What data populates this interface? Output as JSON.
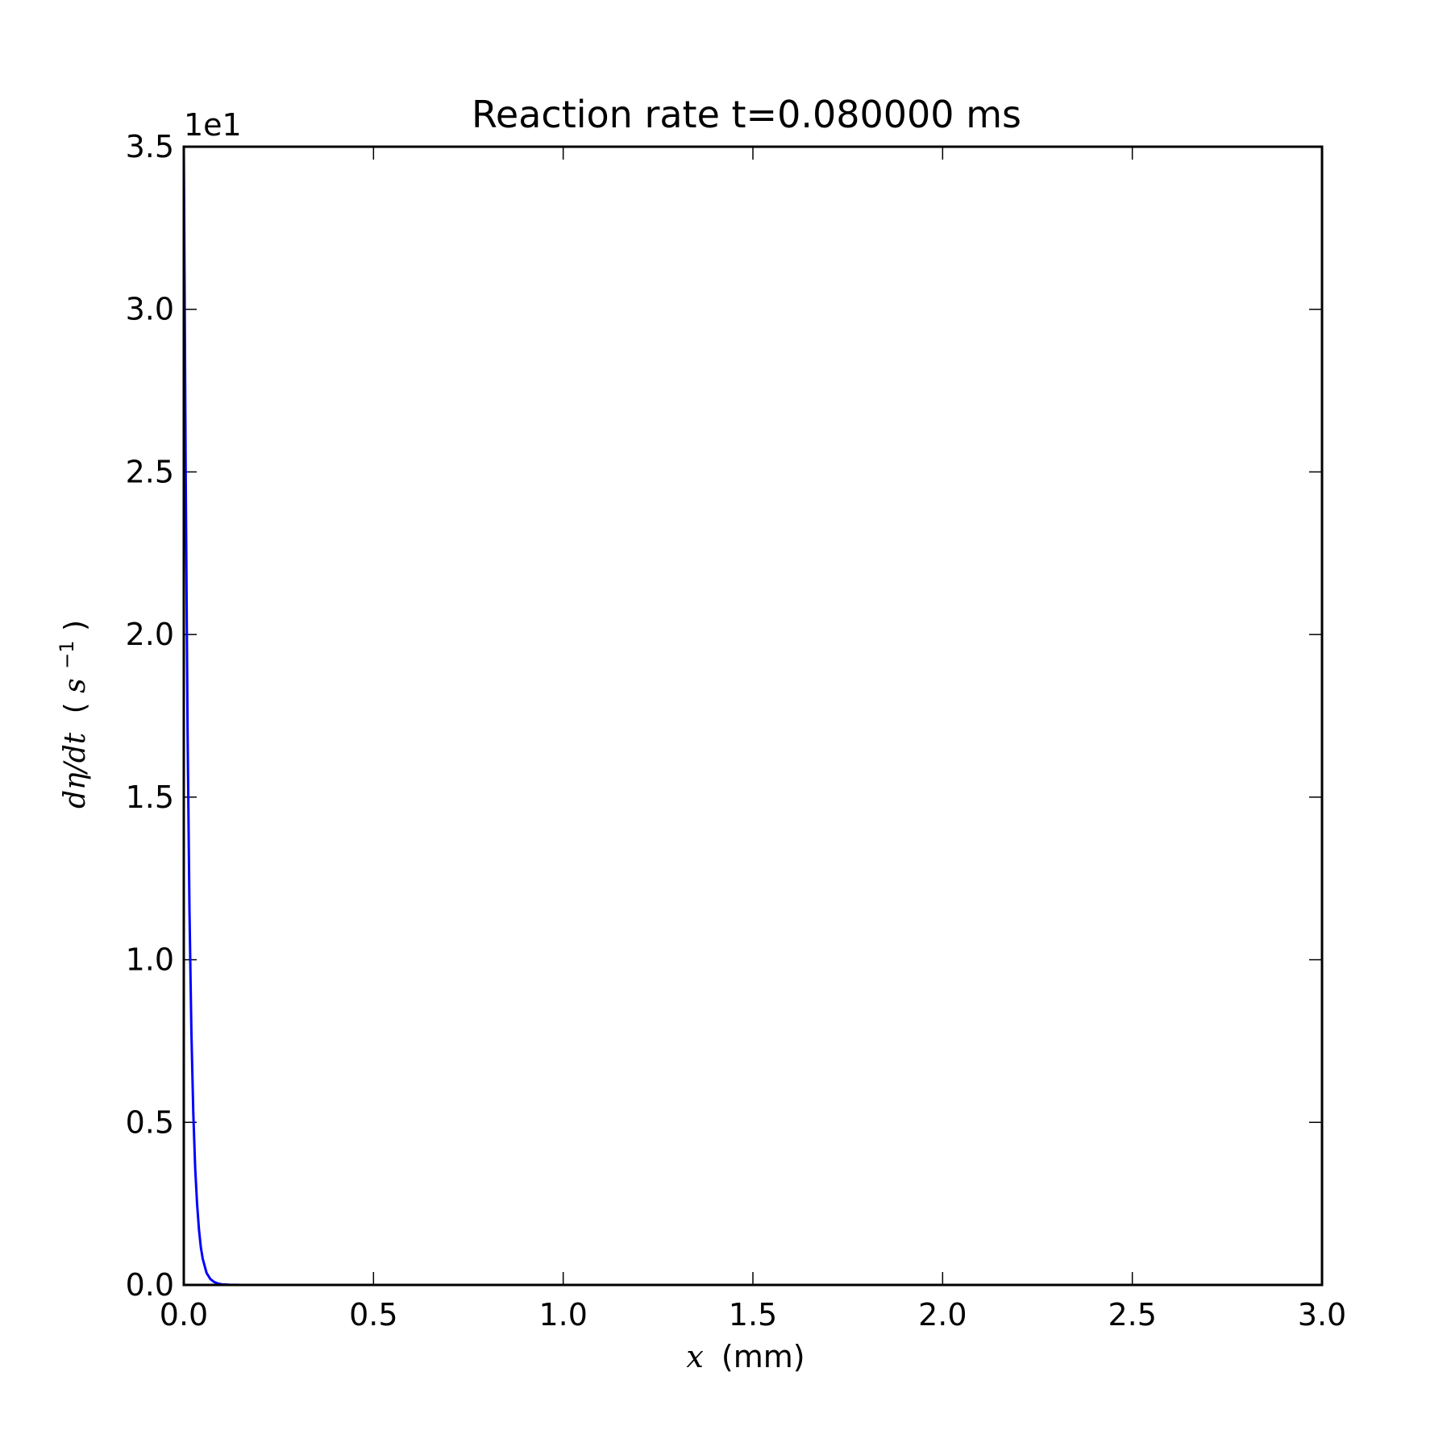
{
  "chart_data": {
    "type": "line",
    "title": "Reaction rate t=0.080000 ms",
    "xlabel": {
      "math": "x",
      "unit": "(mm)"
    },
    "ylabel": {
      "math": "dη/dt",
      "unit_open": "(",
      "unit_base": "s",
      "unit_exp": "−1",
      "unit_close": ")"
    },
    "y_offset_label": "1e1",
    "xlim": [
      0.0,
      3.0
    ],
    "ylim": [
      0.0,
      3.5
    ],
    "x_ticks": [
      0.0,
      0.5,
      1.0,
      1.5,
      2.0,
      2.5,
      3.0
    ],
    "x_tick_labels": [
      "0.0",
      "0.5",
      "1.0",
      "1.5",
      "2.0",
      "2.5",
      "3.0"
    ],
    "y_ticks": [
      0.0,
      0.5,
      1.0,
      1.5,
      2.0,
      2.5,
      3.0,
      3.5
    ],
    "y_tick_labels": [
      "0.0",
      "0.5",
      "1.0",
      "1.5",
      "2.0",
      "2.5",
      "3.0",
      "3.5"
    ],
    "grid": false,
    "legend": "none",
    "series": [
      {
        "color": "#0000ff",
        "x": [
          0.0,
          0.002,
          0.005,
          0.01,
          0.015,
          0.02,
          0.025,
          0.03,
          0.035,
          0.04,
          0.045,
          0.05,
          0.06,
          0.07,
          0.08,
          0.09,
          0.1,
          0.12,
          0.15,
          0.2,
          0.3,
          0.5,
          1.0,
          1.5,
          2.0,
          2.5,
          3.0
        ],
        "y": [
          3.5,
          3.1,
          2.5,
          1.7,
          1.15,
          0.78,
          0.53,
          0.36,
          0.25,
          0.17,
          0.115,
          0.08,
          0.037,
          0.018,
          0.009,
          0.0045,
          0.002,
          0.0006,
          0.0001,
          0.0,
          0.0,
          0.0,
          0.0,
          0.0,
          0.0,
          0.0,
          0.0
        ]
      }
    ]
  }
}
